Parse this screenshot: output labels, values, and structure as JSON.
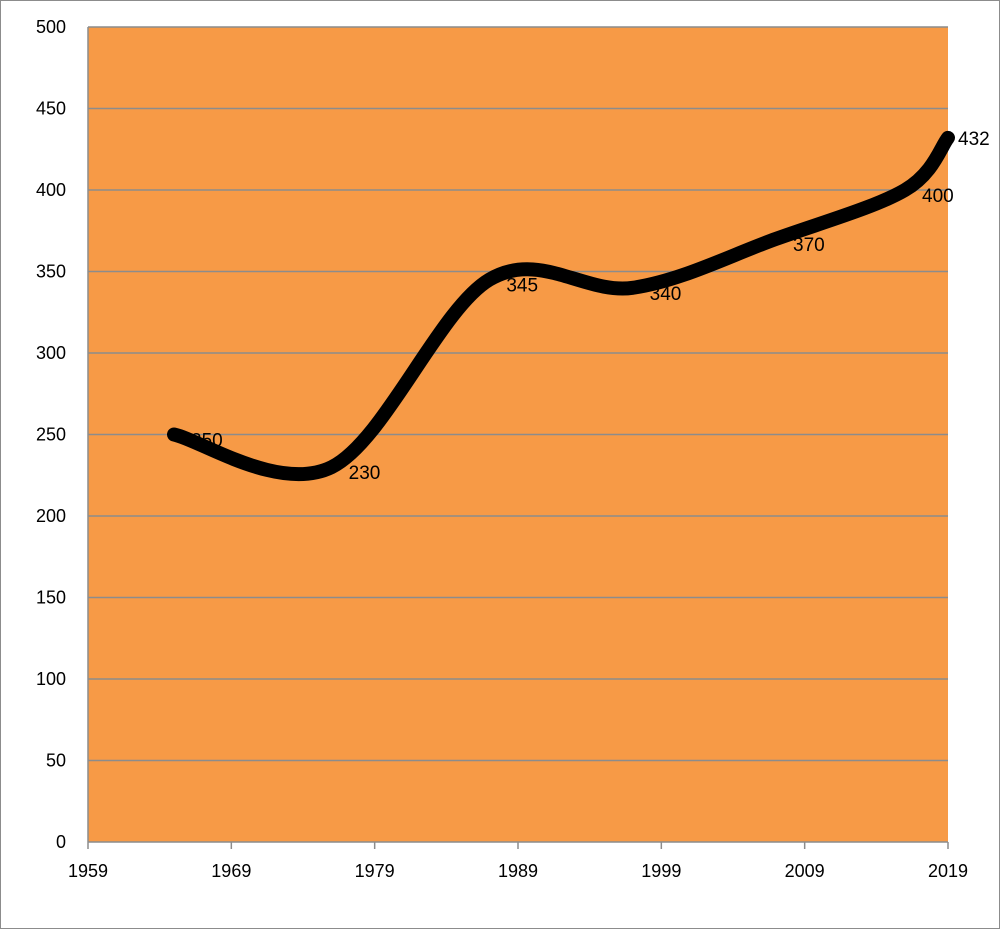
{
  "chart_data": {
    "type": "line",
    "title": "",
    "xlabel": "",
    "ylabel": "",
    "xlim": [
      1959,
      2019
    ],
    "ylim": [
      0,
      500
    ],
    "x_ticks": [
      1959,
      1969,
      1979,
      1989,
      1999,
      2009,
      2019
    ],
    "y_ticks": [
      0,
      50,
      100,
      150,
      200,
      250,
      300,
      350,
      400,
      450,
      500
    ],
    "grid": true,
    "legend": "none",
    "smooth": true,
    "colors": {
      "plot_background": "#f79a46",
      "line": "#000000",
      "gridline": "#8c8c8c"
    },
    "series": [
      {
        "x": [
          1965,
          1976,
          1987,
          1997,
          2007,
          2016,
          2019
        ],
        "values": [
          250,
          230,
          345,
          340,
          370,
          400,
          432
        ],
        "labels": [
          "250",
          "230",
          "345",
          "340",
          "370",
          "400",
          "432"
        ]
      }
    ]
  }
}
